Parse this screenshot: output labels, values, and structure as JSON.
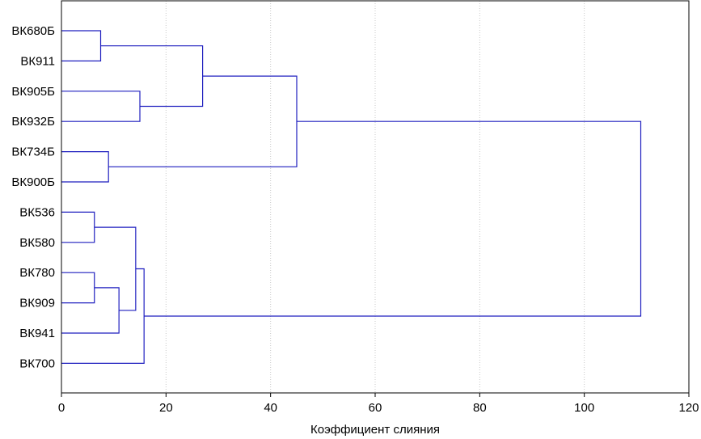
{
  "chart_data": {
    "type": "dendrogram",
    "orientation": "horizontal",
    "title": "",
    "xlabel": "Коэффициент слияния",
    "ylabel": "",
    "xlim": [
      0,
      120
    ],
    "xticks": [
      0,
      20,
      40,
      60,
      80,
      100,
      120
    ],
    "grid": "vertical-dotted",
    "leaves": [
      "ВК680Б",
      "ВК911",
      "ВК905Б",
      "ВК932Б",
      "ВК734Б",
      "ВК900Б",
      "ВК536",
      "ВК580",
      "ВК780",
      "ВК909",
      "ВК941",
      "ВК700"
    ],
    "merges": [
      {
        "id": "m1",
        "left": "ВК680Б",
        "right": "ВК911",
        "height": 7.5
      },
      {
        "id": "m2",
        "left": "ВК905Б",
        "right": "ВК932Б",
        "height": 15
      },
      {
        "id": "m3",
        "left": "m1",
        "right": "m2",
        "height": 27
      },
      {
        "id": "m4",
        "left": "ВК734Б",
        "right": "ВК900Б",
        "height": 9
      },
      {
        "id": "m5",
        "left": "m3",
        "right": "m4",
        "height": 45
      },
      {
        "id": "m6",
        "left": "ВК536",
        "right": "ВК580",
        "height": 6.3
      },
      {
        "id": "m7",
        "left": "ВК780",
        "right": "ВК909",
        "height": 6.3
      },
      {
        "id": "m8",
        "left": "m7",
        "right": "ВК941",
        "height": 11
      },
      {
        "id": "m9",
        "left": "m6",
        "right": "m8",
        "height": 14.2
      },
      {
        "id": "m10",
        "left": "m9",
        "right": "ВК700",
        "height": 15.8
      },
      {
        "id": "m11",
        "left": "m5",
        "right": "m10",
        "height": 110.8
      }
    ],
    "colors": {
      "links": "#1f1fbf",
      "frame": "#000000",
      "grid": "#c8c8c8"
    }
  }
}
